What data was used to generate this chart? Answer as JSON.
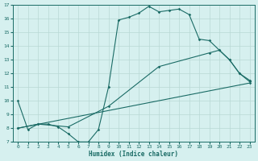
{
  "xlabel": "Humidex (Indice chaleur)",
  "bg_color": "#d6f0ef",
  "grid_color": "#b8d8d5",
  "line_color": "#1a6b65",
  "xlim": [
    -0.5,
    23.5
  ],
  "ylim": [
    7,
    17
  ],
  "xticks": [
    0,
    1,
    2,
    3,
    4,
    5,
    6,
    7,
    8,
    9,
    10,
    11,
    12,
    13,
    14,
    15,
    16,
    17,
    18,
    19,
    20,
    21,
    22,
    23
  ],
  "yticks": [
    7,
    8,
    9,
    10,
    11,
    12,
    13,
    14,
    15,
    16,
    17
  ],
  "line1_x": [
    0,
    1,
    2,
    3,
    4,
    5,
    6,
    7,
    8,
    9,
    10,
    11,
    12,
    13,
    14,
    15,
    16,
    17,
    18,
    19,
    20,
    21,
    22,
    23
  ],
  "line1_y": [
    10.0,
    7.9,
    8.3,
    8.3,
    8.1,
    7.6,
    7.0,
    7.0,
    7.9,
    11.0,
    15.9,
    16.1,
    16.4,
    16.9,
    16.5,
    16.6,
    16.7,
    16.3,
    14.5,
    14.4,
    13.7,
    13.0,
    12.0,
    11.5
  ],
  "line2_x": [
    0,
    2,
    5,
    9,
    14,
    19,
    20,
    21,
    22,
    23
  ],
  "line2_y": [
    8.0,
    8.3,
    8.1,
    9.6,
    12.5,
    13.5,
    13.7,
    13.0,
    12.0,
    11.4
  ],
  "line3_x": [
    0,
    23
  ],
  "line3_y": [
    8.0,
    11.3
  ]
}
